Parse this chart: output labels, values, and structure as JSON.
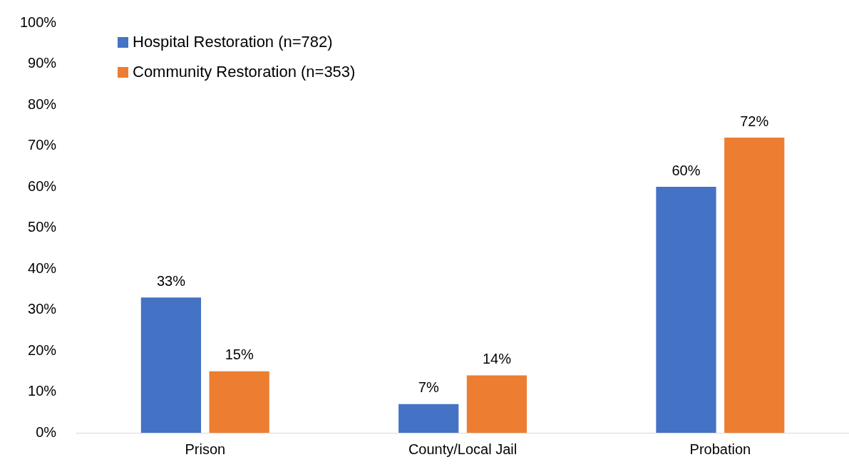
{
  "chart_data": {
    "type": "bar",
    "categories": [
      "Prison",
      "County/Local Jail",
      "Probation"
    ],
    "series": [
      {
        "name": "Hospital Restoration (n=782)",
        "color": "#4472c4",
        "values": [
          33,
          7,
          60
        ],
        "value_labels": [
          "33%",
          "7%",
          "60%"
        ]
      },
      {
        "name": "Community Restoration (n=353)",
        "color": "#ed7d31",
        "values": [
          15,
          14,
          72
        ],
        "value_labels": [
          "15%",
          "14%",
          "72%"
        ]
      }
    ],
    "ylim": [
      0,
      100
    ],
    "yticks": [
      {
        "value": 0,
        "label": "0%"
      },
      {
        "value": 10,
        "label": "10%"
      },
      {
        "value": 20,
        "label": "20%"
      },
      {
        "value": 30,
        "label": "30%"
      },
      {
        "value": 40,
        "label": "40%"
      },
      {
        "value": 50,
        "label": "50%"
      },
      {
        "value": 60,
        "label": "60%"
      },
      {
        "value": 70,
        "label": "70%"
      },
      {
        "value": 80,
        "label": "80%"
      },
      {
        "value": 90,
        "label": "90%"
      },
      {
        "value": 100,
        "label": "100%"
      }
    ],
    "grid": false,
    "legend": "top left"
  }
}
